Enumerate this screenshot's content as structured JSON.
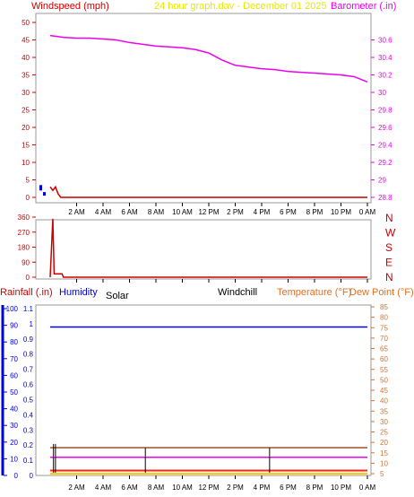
{
  "header": {
    "windspeed_label": "Windspeed (mph)",
    "title": "24 hour graph.dav - December 01 2025",
    "barometer_label": "Barometer (.in)"
  },
  "colors": {
    "background": "#ffffff",
    "frame": "#9a9a9a",
    "grid": "#c8c8c8",
    "windspeed": "#cc0000",
    "barometer": "#ee00ee",
    "title": "#e8e800",
    "direction": "#cc0000",
    "rain": "#0000dd",
    "humidity": "#0000dd",
    "solar": "#000000",
    "windchill": "#000000",
    "temperature": "#e07020",
    "dewpoint": "#e07020",
    "temperature_line": "#a0522d",
    "rain_line": "#ee00ee"
  },
  "x_axis": {
    "ticks": [
      "2 AM",
      "4 AM",
      "6 AM",
      "8 AM",
      "10 AM",
      "12 PM",
      "2 PM",
      "4 PM",
      "6 PM",
      "8 PM",
      "10 PM",
      "0 AM"
    ]
  },
  "chart_data": [
    {
      "type": "line",
      "panel": "wind-barometer",
      "x_range_hours": [
        0,
        24
      ],
      "y_left": {
        "label": "Windspeed (mph)",
        "ylim": [
          0,
          50
        ],
        "ticks": [
          0,
          5,
          10,
          15,
          20,
          25,
          30,
          35,
          40,
          45,
          50
        ]
      },
      "y_right": {
        "label": "Barometer (.in)",
        "ylim": [
          28.8,
          30.8
        ],
        "ticks": [
          "28.8",
          "29",
          "29.2",
          "29.4",
          "29.6",
          "29.8",
          "30",
          "30.2",
          "30.4",
          "30.6"
        ]
      },
      "series": [
        {
          "name": "Barometer",
          "axis": "right",
          "x": [
            0,
            1,
            2,
            3,
            4,
            5,
            6,
            7,
            8,
            9,
            10,
            11,
            12,
            13,
            14,
            15,
            16,
            17,
            18,
            19,
            20,
            21,
            22,
            23,
            24
          ],
          "values": [
            30.65,
            30.63,
            30.62,
            30.62,
            30.61,
            30.6,
            30.57,
            30.55,
            30.53,
            30.52,
            30.51,
            30.49,
            30.45,
            30.37,
            30.31,
            30.29,
            30.27,
            30.26,
            30.24,
            30.23,
            30.22,
            30.21,
            30.2,
            30.18,
            30.12
          ]
        },
        {
          "name": "Windspeed",
          "axis": "left",
          "x": [
            0,
            0.2,
            0.4,
            0.6,
            0.8,
            24
          ],
          "values": [
            3,
            2,
            3,
            1,
            0,
            0
          ]
        }
      ]
    },
    {
      "type": "line",
      "panel": "wind-direction",
      "x_range_hours": [
        0,
        24
      ],
      "y_left": {
        "ylim": [
          0,
          360
        ],
        "ticks": [
          0,
          90,
          180,
          270,
          360
        ]
      },
      "y_right": {
        "ticks": [
          "N",
          "W",
          "S",
          "E",
          "N"
        ]
      },
      "series": [
        {
          "name": "Wind direction",
          "x": [
            0,
            0.2,
            0.3,
            0.4,
            0.9,
            1.0,
            24
          ],
          "values": [
            0,
            350,
            20,
            20,
            20,
            0,
            0
          ]
        }
      ]
    },
    {
      "type": "line",
      "panel": "rain-humidity-temperature",
      "x_range_hours": [
        0,
        24
      ],
      "labels": {
        "rainfall": "Rainfall (.in)",
        "humidity": "Humidity",
        "solar": "Solar",
        "windchill": "Windchill",
        "temperature": "Temperature (°F)",
        "dewpoint": "Dew Point (°F)"
      },
      "y_humidity": {
        "ylim": [
          0,
          100
        ],
        "ticks": [
          0,
          10,
          20,
          30,
          40,
          50,
          60,
          70,
          80,
          90,
          100
        ]
      },
      "y_rain": {
        "ylim": [
          0,
          1.1
        ],
        "ticks": [
          "0",
          "0.1",
          "0.2",
          "0.3",
          "0.4",
          "0.5",
          "0.6",
          "0.7",
          "0.8",
          "0.9",
          "1",
          "1.1"
        ]
      },
      "y_temperature": {
        "ylim": [
          5,
          85
        ],
        "ticks": [
          5,
          10,
          15,
          20,
          25,
          30,
          35,
          40,
          45,
          50,
          55,
          60,
          65,
          70,
          75,
          80,
          85
        ]
      },
      "series": [
        {
          "name": "Humidity",
          "axis": "humidity",
          "x": [
            0,
            24
          ],
          "values": [
            89,
            89
          ]
        },
        {
          "name": "Temperature",
          "axis": "temperature",
          "x": [
            0,
            24
          ],
          "values": [
            17.5,
            17.5
          ]
        },
        {
          "name": "Rainfall",
          "axis": "rain",
          "x": [
            0,
            24
          ],
          "values": [
            0.12,
            0.12
          ]
        },
        {
          "name": "Dew Point",
          "axis": "temperature",
          "x": [
            0,
            24
          ],
          "values": [
            6.5,
            6.5
          ]
        },
        {
          "name": "Windchill",
          "axis": "temperature",
          "x": [
            0,
            24
          ],
          "values": [
            5,
            5
          ]
        }
      ],
      "solar_spikes": [
        {
          "x": 0.25,
          "value": 15
        },
        {
          "x": 0.4,
          "value": 15
        },
        {
          "x": 7.2,
          "value": 13
        },
        {
          "x": 16.6,
          "value": 13
        }
      ]
    }
  ]
}
